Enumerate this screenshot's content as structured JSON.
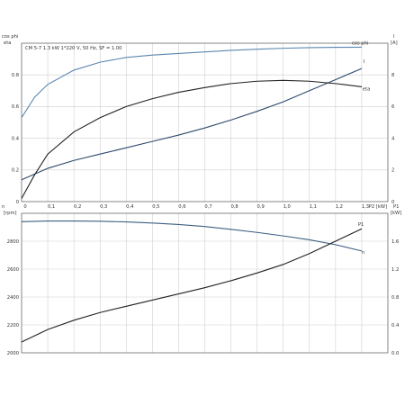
{
  "chart_data": [
    {
      "type": "line",
      "title": "CM 5-7   1.3 kW   1*220 V, 50 Hz, SF = 1.00",
      "xlabel": "P2 [kW]",
      "xlim": [
        0,
        1.4
      ],
      "xticks": [
        "0",
        "0,1",
        "0,2",
        "0,3",
        "0,4",
        "0,5",
        "0,6",
        "0,7",
        "0,8",
        "0,9",
        "1,0",
        "1,1",
        "1,2",
        "1,3"
      ],
      "y_left": {
        "label_top": "cos phi",
        "label_bottom": "eta",
        "lim": [
          0,
          1
        ],
        "ticks": [
          "0",
          "0.2",
          "0.4",
          "0.6",
          "0.8"
        ]
      },
      "y_right": {
        "label_top": "I",
        "label_bottom": "[A]",
        "lim": [
          0,
          10
        ],
        "ticks": [
          "0",
          "2",
          "4",
          "6",
          "8"
        ]
      },
      "grid": true,
      "series": [
        {
          "name": "cos phi",
          "axis": "left",
          "color": "#5a86b0",
          "points": [
            [
              0,
              0.53
            ],
            [
              0.05,
              0.66
            ],
            [
              0.1,
              0.74
            ],
            [
              0.2,
              0.83
            ],
            [
              0.3,
              0.88
            ],
            [
              0.4,
              0.91
            ],
            [
              0.5,
              0.925
            ],
            [
              0.6,
              0.935
            ],
            [
              0.7,
              0.945
            ],
            [
              0.8,
              0.955
            ],
            [
              0.9,
              0.962
            ],
            [
              1.0,
              0.968
            ],
            [
              1.1,
              0.972
            ],
            [
              1.2,
              0.974
            ],
            [
              1.3,
              0.975
            ]
          ]
        },
        {
          "name": "I",
          "axis": "right",
          "color": "#2d4a6d",
          "points": [
            [
              0,
              1.38
            ],
            [
              0.1,
              2.1
            ],
            [
              0.2,
              2.6
            ],
            [
              0.3,
              3.0
            ],
            [
              0.4,
              3.4
            ],
            [
              0.5,
              3.8
            ],
            [
              0.6,
              4.2
            ],
            [
              0.7,
              4.65
            ],
            [
              0.8,
              5.15
            ],
            [
              0.9,
              5.7
            ],
            [
              1.0,
              6.3
            ],
            [
              1.1,
              7.0
            ],
            [
              1.2,
              7.7
            ],
            [
              1.3,
              8.4
            ]
          ]
        },
        {
          "name": "eta",
          "axis": "left",
          "color": "#222222",
          "points": [
            [
              0,
              0.02
            ],
            [
              0.05,
              0.17
            ],
            [
              0.1,
              0.3
            ],
            [
              0.2,
              0.44
            ],
            [
              0.3,
              0.53
            ],
            [
              0.4,
              0.6
            ],
            [
              0.5,
              0.65
            ],
            [
              0.6,
              0.69
            ],
            [
              0.7,
              0.72
            ],
            [
              0.8,
              0.745
            ],
            [
              0.9,
              0.76
            ],
            [
              1.0,
              0.765
            ],
            [
              1.1,
              0.76
            ],
            [
              1.2,
              0.745
            ],
            [
              1.3,
              0.725
            ]
          ]
        }
      ]
    },
    {
      "type": "line",
      "xlim": [
        0,
        1.4
      ],
      "y_left": {
        "label_top": "n",
        "label_bottom": "[rpm]",
        "lim": [
          2000,
          3000
        ],
        "ticks": [
          "2000",
          "2200",
          "2400",
          "2600",
          "2800"
        ]
      },
      "y_right": {
        "label_top": "P1",
        "label_bottom": "[kW]",
        "lim": [
          0,
          1.8
        ],
        "ticks": [
          "0.0",
          "0.4",
          "0.8",
          "1.2",
          "1.6"
        ]
      },
      "grid": true,
      "series": [
        {
          "name": "n",
          "axis": "left",
          "color": "#3c5f82",
          "points": [
            [
              0,
              2940
            ],
            [
              0.1,
              2945
            ],
            [
              0.2,
              2945
            ],
            [
              0.3,
              2943
            ],
            [
              0.4,
              2938
            ],
            [
              0.5,
              2930
            ],
            [
              0.6,
              2920
            ],
            [
              0.7,
              2905
            ],
            [
              0.8,
              2885
            ],
            [
              0.9,
              2863
            ],
            [
              1.0,
              2838
            ],
            [
              1.1,
              2810
            ],
            [
              1.2,
              2775
            ],
            [
              1.3,
              2730
            ]
          ]
        },
        {
          "name": "P1",
          "axis": "right",
          "color": "#222222",
          "points": [
            [
              0,
              0.14
            ],
            [
              0.1,
              0.3
            ],
            [
              0.2,
              0.42
            ],
            [
              0.3,
              0.52
            ],
            [
              0.4,
              0.6
            ],
            [
              0.5,
              0.68
            ],
            [
              0.6,
              0.76
            ],
            [
              0.7,
              0.84
            ],
            [
              0.8,
              0.93
            ],
            [
              0.9,
              1.03
            ],
            [
              1.0,
              1.14
            ],
            [
              1.1,
              1.28
            ],
            [
              1.2,
              1.44
            ],
            [
              1.3,
              1.6
            ]
          ]
        }
      ]
    }
  ]
}
